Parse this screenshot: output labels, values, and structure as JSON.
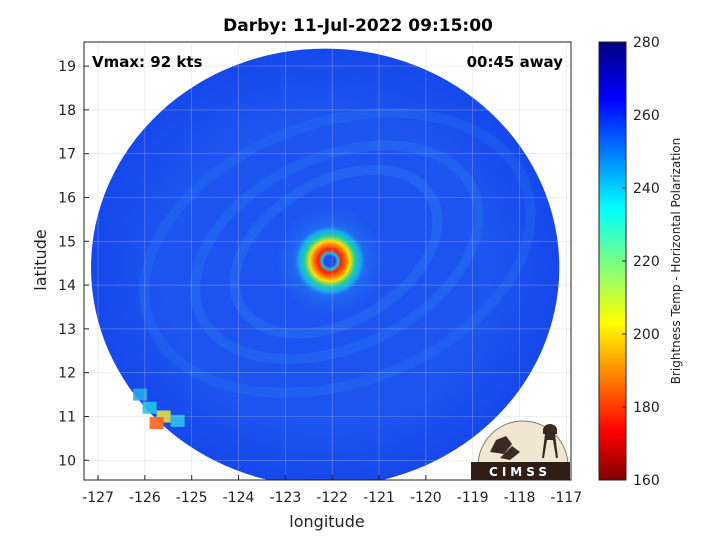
{
  "title": "Darby: 11-Jul-2022 09:15:00",
  "annotations": {
    "vmax": "Vmax: 92 kts",
    "time_offset": "00:45 away"
  },
  "axes": {
    "xlabel": "longitude",
    "ylabel": "latitude",
    "xlim": [
      -127.3,
      -116.9
    ],
    "ylim": [
      9.55,
      19.55
    ],
    "xticks": [
      -127,
      -126,
      -125,
      -124,
      -123,
      -122,
      -121,
      -120,
      -119,
      -118,
      -117
    ],
    "yticks": [
      10,
      11,
      12,
      13,
      14,
      15,
      16,
      17,
      18,
      19
    ],
    "grid": true
  },
  "colorbar": {
    "label": "Brightness Temp - Horizontal Polarization",
    "range": [
      160,
      280
    ],
    "ticks": [
      160,
      180,
      200,
      220,
      240,
      260,
      280
    ],
    "colormap": "jet"
  },
  "storm": {
    "name": "Darby",
    "center_lon": -122.05,
    "center_lat": 14.55,
    "swath_center_lon": -122.15,
    "swath_center_lat": 14.4,
    "swath_radius_deg": 5.0
  },
  "logo": {
    "text": "CIMSS"
  },
  "colors": {
    "background_scene": "#1a50f0",
    "eyewall": "#e02010",
    "eye": "#1e50e6"
  }
}
